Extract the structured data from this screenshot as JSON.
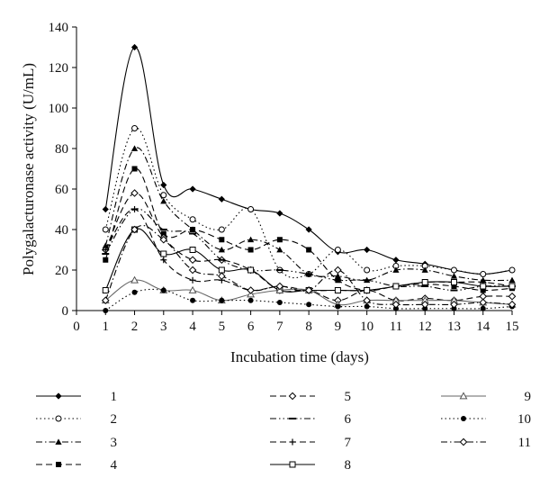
{
  "chart_data": {
    "type": "line",
    "title": "",
    "xlabel": "Incubation time (days)",
    "ylabel": "Polygalacturonase activity (U/mL)",
    "xlim": [
      0,
      15
    ],
    "ylim": [
      0,
      140
    ],
    "x_ticks": [
      0,
      1,
      2,
      3,
      4,
      5,
      6,
      7,
      8,
      9,
      10,
      11,
      12,
      13,
      14,
      15
    ],
    "y_ticks": [
      0,
      20,
      40,
      60,
      80,
      100,
      120,
      140
    ],
    "grid": false,
    "legend_position": "bottom",
    "x": [
      1,
      2,
      3,
      4,
      5,
      6,
      7,
      8,
      9,
      10,
      11,
      12,
      13,
      14,
      15
    ],
    "series": [
      {
        "name": "1",
        "values": [
          50,
          130,
          62,
          60,
          55,
          50,
          48,
          40,
          29,
          30,
          25,
          23,
          20,
          18,
          20
        ],
        "marker": "filled-diamond",
        "dash": "solid"
      },
      {
        "name": "2",
        "values": [
          40,
          90,
          57,
          45,
          40,
          50,
          20,
          18,
          30,
          20,
          22,
          22,
          20,
          18,
          20
        ],
        "marker": "open-circle",
        "dash": "dot"
      },
      {
        "name": "3",
        "values": [
          32,
          80,
          54,
          40,
          30,
          35,
          30,
          18,
          17,
          15,
          20,
          20,
          17,
          15,
          15
        ],
        "marker": "filled-triangle",
        "dash": "dash-dot"
      },
      {
        "name": "4",
        "values": [
          25,
          70,
          38,
          40,
          35,
          30,
          35,
          30,
          15,
          10,
          12,
          13,
          12,
          10,
          11
        ],
        "marker": "filled-square",
        "dash": "dash"
      },
      {
        "name": "5",
        "values": [
          30,
          58,
          36,
          25,
          25,
          20,
          10,
          10,
          5,
          10,
          5,
          6,
          5,
          7,
          7
        ],
        "marker": "open-diamond",
        "dash": "dash"
      },
      {
        "name": "6",
        "values": [
          28,
          50,
          40,
          38,
          25,
          20,
          20,
          18,
          15,
          15,
          12,
          12,
          10,
          12,
          12
        ],
        "marker": "dash-mark",
        "dash": "dash-dot-dot"
      },
      {
        "name": "7",
        "values": [
          30,
          50,
          25,
          15,
          15,
          10,
          12,
          10,
          10,
          10,
          12,
          14,
          14,
          14,
          12
        ],
        "marker": "plus",
        "dash": "dash"
      },
      {
        "name": "8",
        "values": [
          10,
          40,
          28,
          30,
          20,
          20,
          10,
          10,
          10,
          10,
          12,
          14,
          14,
          12,
          12
        ],
        "marker": "open-square",
        "dash": "solid"
      },
      {
        "name": "9",
        "values": [
          5,
          15,
          10,
          10,
          5,
          8,
          10,
          10,
          3,
          5,
          5,
          5,
          5,
          4,
          3
        ],
        "marker": "open-triangle",
        "dash": "solid-gray"
      },
      {
        "name": "10",
        "values": [
          0,
          9,
          10,
          5,
          5,
          5,
          4,
          3,
          2,
          2,
          1,
          1,
          1,
          1,
          2
        ],
        "marker": "filled-circle",
        "dash": "dot"
      },
      {
        "name": "11",
        "values": [
          5,
          40,
          35,
          20,
          17,
          10,
          12,
          10,
          20,
          5,
          3,
          3,
          3,
          4,
          3
        ],
        "marker": "open-diamond",
        "dash": "dash-dot"
      }
    ]
  }
}
